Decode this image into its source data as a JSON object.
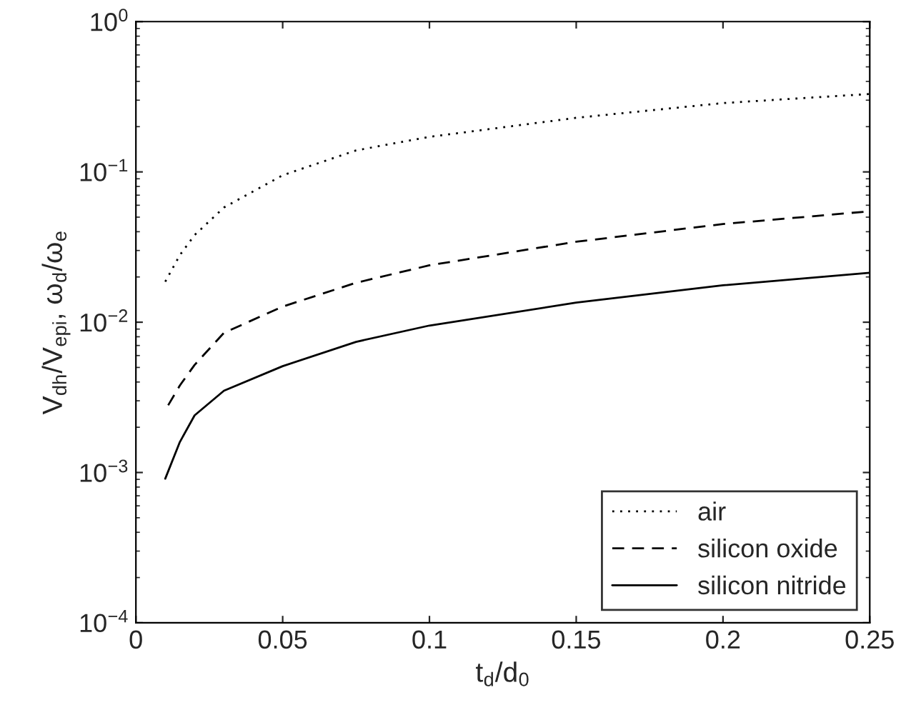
{
  "chart_data": {
    "type": "line",
    "xlabel": "t$_{d}$/d$_{0}$",
    "ylabel": "V$_{dh}$/V$_{epi}$, ω$_{d}$/ω$_{e}$",
    "log": "y",
    "xlim": [
      0,
      0.25
    ],
    "ylim": [
      0.0001,
      1
    ],
    "xticks": [
      0,
      0.05,
      0.1,
      0.15,
      0.2,
      0.25
    ],
    "yticks": [
      {
        "value": 0.0001,
        "label": "10$^{−4}$"
      },
      {
        "value": 0.001,
        "label": "10$^{−3}$"
      },
      {
        "value": 0.01,
        "label": "10$^{−2}$"
      },
      {
        "value": 0.1,
        "label": "10$^{−1}$"
      },
      {
        "value": 1,
        "label": "10$^{0}$"
      }
    ],
    "grid": false,
    "legend": "bottom right",
    "marker": "none",
    "series": [
      {
        "name": "air",
        "color": "#000000",
        "line_style": "dotted",
        "x": [
          0.01,
          0.015,
          0.02,
          0.03,
          0.05,
          0.075,
          0.1,
          0.15,
          0.2,
          0.25
        ],
        "values": [
          0.0186,
          0.028,
          0.038,
          0.058,
          0.095,
          0.139,
          0.171,
          0.229,
          0.287,
          0.33
        ]
      },
      {
        "name": "silicon oxide",
        "color": "#000000",
        "line_style": "dashed",
        "x": [
          0.011,
          0.015,
          0.02,
          0.03,
          0.05,
          0.075,
          0.1,
          0.15,
          0.2,
          0.25
        ],
        "values": [
          0.0028,
          0.0038,
          0.0052,
          0.0085,
          0.0127,
          0.0183,
          0.0239,
          0.0343,
          0.045,
          0.0547
        ]
      },
      {
        "name": "silicon nitride",
        "color": "#000000",
        "line_style": "solid",
        "x": [
          0.01,
          0.015,
          0.02,
          0.03,
          0.05,
          0.075,
          0.1,
          0.15,
          0.2,
          0.25
        ],
        "values": [
          0.00091,
          0.0016,
          0.0024,
          0.0035,
          0.0051,
          0.0074,
          0.0095,
          0.0135,
          0.0176,
          0.0213
        ]
      }
    ]
  }
}
